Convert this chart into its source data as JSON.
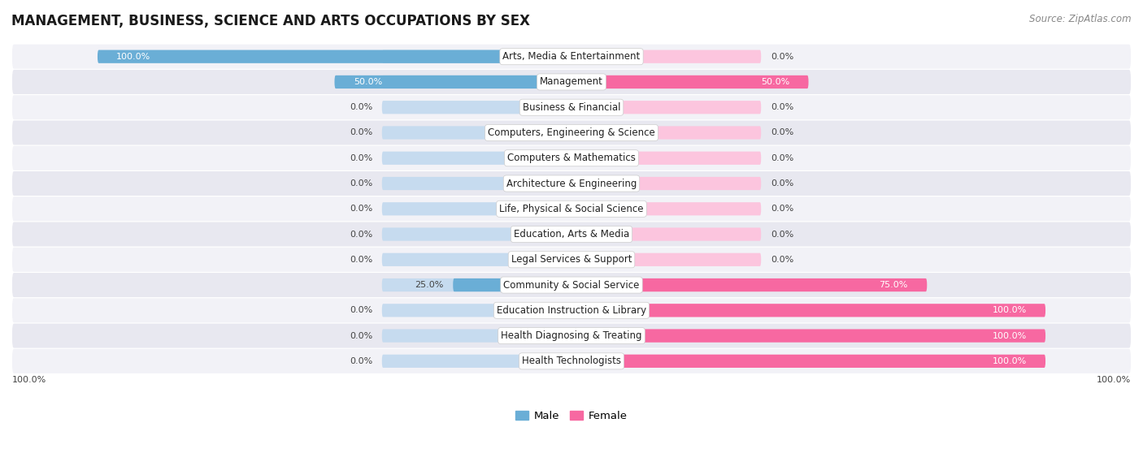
{
  "title": "MANAGEMENT, BUSINESS, SCIENCE AND ARTS OCCUPATIONS BY SEX",
  "source": "Source: ZipAtlas.com",
  "categories": [
    "Arts, Media & Entertainment",
    "Management",
    "Business & Financial",
    "Computers, Engineering & Science",
    "Computers & Mathematics",
    "Architecture & Engineering",
    "Life, Physical & Social Science",
    "Education, Arts & Media",
    "Legal Services & Support",
    "Community & Social Service",
    "Education Instruction & Library",
    "Health Diagnosing & Treating",
    "Health Technologists"
  ],
  "male_values": [
    100.0,
    50.0,
    0.0,
    0.0,
    0.0,
    0.0,
    0.0,
    0.0,
    0.0,
    25.0,
    0.0,
    0.0,
    0.0
  ],
  "female_values": [
    0.0,
    50.0,
    0.0,
    0.0,
    0.0,
    0.0,
    0.0,
    0.0,
    0.0,
    75.0,
    100.0,
    100.0,
    100.0
  ],
  "male_color": "#6aaed6",
  "female_color": "#f768a1",
  "male_bg_color": "#c6dbef",
  "female_bg_color": "#fcc5de",
  "row_color_even": "#f2f2f7",
  "row_color_odd": "#e8e8f0",
  "title_fontsize": 12,
  "cat_fontsize": 8.5,
  "val_fontsize": 8,
  "source_fontsize": 8.5
}
